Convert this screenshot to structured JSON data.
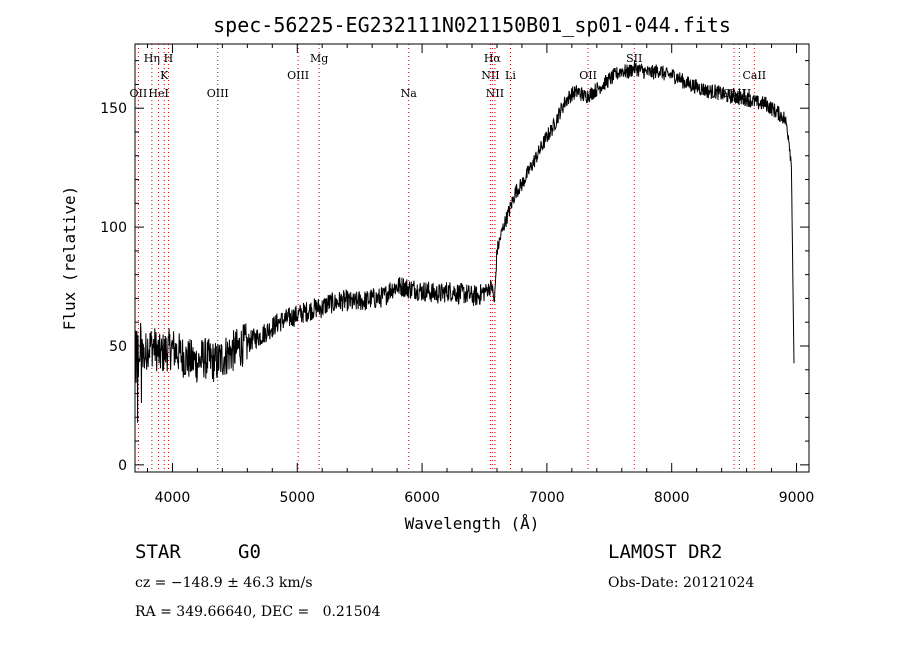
{
  "chart_data": {
    "type": "line",
    "title": "spec-56225-EG232111N021150B01_sp01-044.fits",
    "xlabel": "Wavelength (Å)",
    "ylabel": "Flux (relative)",
    "xlim": [
      3700,
      9100
    ],
    "ylim": [
      -3,
      177
    ],
    "x_ticks": [
      4000,
      5000,
      6000,
      7000,
      8000,
      9000
    ],
    "y_ticks": [
      0,
      50,
      100,
      150
    ],
    "grid": false,
    "legend": "none",
    "line_color": "#000000",
    "marker_color": "#cc0000",
    "spectrum": {
      "x": [
        3700,
        3725,
        3750,
        3775,
        3800,
        3850,
        3900,
        3950,
        4000,
        4050,
        4100,
        4150,
        4200,
        4250,
        4300,
        4350,
        4400,
        4450,
        4500,
        4550,
        4600,
        4650,
        4700,
        4750,
        4800,
        4850,
        4900,
        4950,
        5000,
        5050,
        5100,
        5150,
        5200,
        5250,
        5300,
        5350,
        5400,
        5450,
        5500,
        5550,
        5600,
        5650,
        5700,
        5750,
        5800,
        5850,
        5900,
        5950,
        6000,
        6050,
        6100,
        6150,
        6200,
        6250,
        6300,
        6350,
        6400,
        6450,
        6500,
        6530,
        6560,
        6580,
        6600,
        6650,
        6700,
        6750,
        6800,
        6850,
        6900,
        6950,
        7000,
        7050,
        7100,
        7150,
        7200,
        7250,
        7300,
        7350,
        7400,
        7450,
        7500,
        7550,
        7600,
        7650,
        7700,
        7750,
        7800,
        7850,
        7900,
        7950,
        8000,
        8050,
        8100,
        8150,
        8200,
        8250,
        8300,
        8350,
        8400,
        8450,
        8500,
        8550,
        8600,
        8650,
        8700,
        8750,
        8800,
        8850,
        8900,
        8920,
        8940,
        8960,
        8980
      ],
      "y": [
        55,
        48,
        52,
        45,
        50,
        50,
        46,
        48,
        49,
        47,
        45,
        44,
        43,
        45,
        44,
        43,
        45,
        47,
        48,
        50,
        51,
        53,
        54,
        56,
        58,
        60,
        61,
        62,
        63,
        64,
        65,
        66,
        66,
        68,
        68,
        69,
        69,
        68,
        69,
        69,
        70,
        70,
        71,
        74,
        75,
        75,
        74,
        74,
        73,
        73,
        72,
        72,
        73,
        73,
        72,
        72,
        71,
        71,
        73,
        74,
        75,
        68,
        90,
        100,
        107,
        115,
        118,
        123,
        128,
        133,
        138,
        142,
        148,
        153,
        156,
        157,
        155,
        156,
        158,
        160,
        162,
        164,
        166,
        165,
        167,
        166,
        165,
        165,
        166,
        164,
        164,
        163,
        161,
        160,
        159,
        158,
        157,
        157,
        156,
        155,
        155,
        154,
        154,
        153,
        152,
        152,
        150,
        148,
        146,
        143,
        137,
        125,
        40
      ]
    },
    "emission_lines": [
      {
        "label": "OII",
        "x": 3727,
        "row": 3
      },
      {
        "label": "Hη",
        "x": 3835,
        "row": 1
      },
      {
        "label": "HeI",
        "x": 3889,
        "row": 3
      },
      {
        "label": "K",
        "x": 3934,
        "row": 2
      },
      {
        "label": "H",
        "x": 3968,
        "row": 1
      },
      {
        "label": "OIII",
        "x": 4363,
        "row": 3
      },
      {
        "label": "OIII",
        "x": 5007,
        "row": 2
      },
      {
        "label": "Mg",
        "x": 5175,
        "row": 1
      },
      {
        "label": "Na",
        "x": 5893,
        "row": 3
      },
      {
        "label": "Hα",
        "x": 6563,
        "row": 1
      },
      {
        "label": "NII",
        "x": 6548,
        "row": 2
      },
      {
        "label": "NII",
        "x": 6584,
        "row": 3
      },
      {
        "label": "Li",
        "x": 6708,
        "row": 2
      },
      {
        "label": "OII",
        "x": 7330,
        "row": 2
      },
      {
        "label": "SII",
        "x": 7700,
        "row": 1
      },
      {
        "label": "CaII",
        "x": 8500,
        "row": 3
      },
      {
        "label": "CaII",
        "x": 8542,
        "row": 3
      },
      {
        "label": "CaII",
        "x": 8662,
        "row": 2
      }
    ]
  },
  "info": {
    "object_class": "STAR",
    "subclass": "G0",
    "survey": "LAMOST DR2",
    "redshift_line": "cz = −148.9 ± 46.3 km/s",
    "obs_date_line": "Obs-Date: 20121024",
    "coords_line": "RA = 349.66640, DEC =   0.21504"
  }
}
